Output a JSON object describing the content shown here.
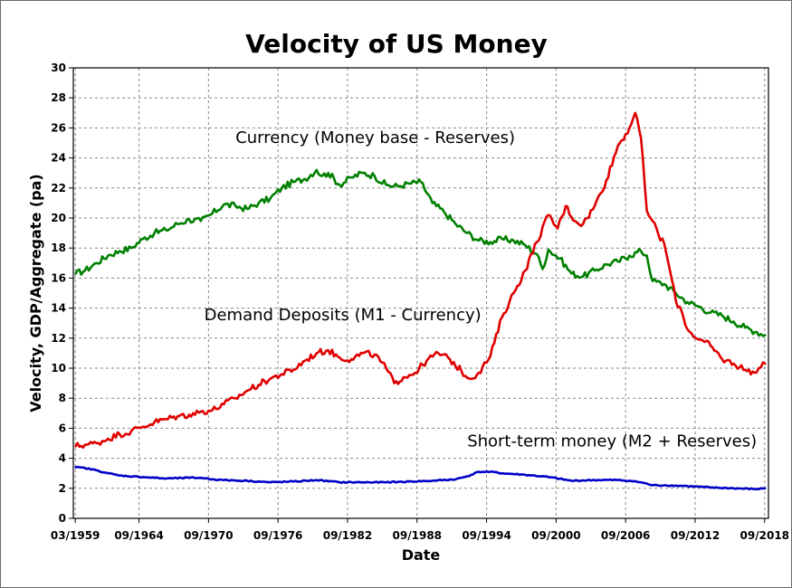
{
  "chart_data": {
    "type": "line",
    "title": "Velocity of US Money",
    "xlabel": "Date",
    "ylabel": "Velocity, GDP/Aggregate (pa)",
    "xlim": [
      1959.0,
      2019.0
    ],
    "ylim": [
      0,
      30
    ],
    "y_ticks": [
      0,
      2,
      4,
      6,
      8,
      10,
      12,
      14,
      16,
      18,
      20,
      22,
      24,
      26,
      28,
      30
    ],
    "x_ticks": [
      {
        "value": 1959.17,
        "label": "03/1959"
      },
      {
        "value": 1964.67,
        "label": "09/1964"
      },
      {
        "value": 1970.67,
        "label": "09/1970"
      },
      {
        "value": 1976.67,
        "label": "09/1976"
      },
      {
        "value": 1982.67,
        "label": "09/1982"
      },
      {
        "value": 1988.67,
        "label": "09/1988"
      },
      {
        "value": 1994.67,
        "label": "09/1994"
      },
      {
        "value": 2000.67,
        "label": "09/2000"
      },
      {
        "value": 2006.67,
        "label": "09/2006"
      },
      {
        "value": 2012.67,
        "label": "09/2012"
      },
      {
        "value": 2018.67,
        "label": "09/2018"
      }
    ],
    "grid": true,
    "legend": "none",
    "annotations": [
      {
        "text": "Currency (Money base - Reserves)",
        "x": 1973.0,
        "y": 25.0
      },
      {
        "text": "Demand Deposits (M1 - Currency)",
        "x": 1970.3,
        "y": 13.2
      },
      {
        "text": "Short-term money (M2 + Reserves)",
        "x": 1993.0,
        "y": 4.8
      }
    ],
    "series": [
      {
        "color": "#008000",
        "x": [
          1959.2,
          1960.0,
          1961.0,
          1962.0,
          1963.0,
          1964.0,
          1965.0,
          1966.0,
          1967.0,
          1968.0,
          1969.0,
          1970.0,
          1971.0,
          1972.0,
          1973.0,
          1974.0,
          1975.0,
          1976.0,
          1977.0,
          1978.0,
          1979.0,
          1980.0,
          1980.5,
          1981.0,
          1982.0,
          1983.0,
          1984.0,
          1985.0,
          1986.0,
          1987.0,
          1988.0,
          1989.0,
          1990.0,
          1991.0,
          1992.0,
          1993.0,
          1994.0,
          1995.0,
          1996.0,
          1997.0,
          1998.0,
          1999.0,
          1999.5,
          2000.0,
          2001.0,
          2002.0,
          2003.0,
          2004.0,
          2005.0,
          2006.0,
          2007.0,
          2008.0,
          2008.5,
          2009.0,
          2010.0,
          2011.0,
          2012.0,
          2013.0,
          2014.0,
          2015.0,
          2016.0,
          2017.0,
          2018.0,
          2018.7
        ],
        "y": [
          16.3,
          16.5,
          17.0,
          17.5,
          17.8,
          18.0,
          18.6,
          19.0,
          19.2,
          19.6,
          19.9,
          19.8,
          20.3,
          20.9,
          20.8,
          20.6,
          21.0,
          21.3,
          22.0,
          22.4,
          22.6,
          23.2,
          22.8,
          23.0,
          22.2,
          22.7,
          23.0,
          22.8,
          22.2,
          22.1,
          22.3,
          22.4,
          21.0,
          20.4,
          19.6,
          19.0,
          18.5,
          18.4,
          18.6,
          18.5,
          18.2,
          17.6,
          16.6,
          17.9,
          17.3,
          16.3,
          16.1,
          16.5,
          16.9,
          17.1,
          17.5,
          17.8,
          17.5,
          15.8,
          15.6,
          15.0,
          14.4,
          14.1,
          13.7,
          13.5,
          13.1,
          12.7,
          12.4,
          12.2
        ]
      },
      {
        "color": "#e00000",
        "x": [
          1959.2,
          1960.0,
          1961.0,
          1962.0,
          1963.0,
          1964.0,
          1965.0,
          1966.0,
          1967.0,
          1968.0,
          1969.0,
          1970.0,
          1971.0,
          1972.0,
          1973.0,
          1974.0,
          1975.0,
          1976.0,
          1977.0,
          1978.0,
          1979.0,
          1980.0,
          1981.0,
          1982.0,
          1983.0,
          1984.0,
          1985.0,
          1986.0,
          1986.7,
          1987.5,
          1988.5,
          1989.5,
          1990.5,
          1991.5,
          1992.5,
          1993.2,
          1994.0,
          1995.0,
          1996.0,
          1997.0,
          1998.0,
          1999.0,
          2000.0,
          2000.8,
          2001.5,
          2002.3,
          2003.0,
          2004.0,
          2005.0,
          2006.0,
          2007.0,
          2007.5,
          2008.0,
          2008.5,
          2009.0,
          2009.5,
          2010.0,
          2010.5,
          2011.0,
          2011.5,
          2012.0,
          2013.0,
          2014.0,
          2015.0,
          2016.0,
          2017.0,
          2017.8,
          2018.7
        ],
        "y": [
          4.8,
          4.9,
          5.0,
          5.3,
          5.6,
          5.8,
          6.1,
          6.4,
          6.6,
          6.8,
          6.9,
          7.1,
          7.2,
          7.6,
          8.0,
          8.5,
          8.9,
          9.3,
          9.6,
          9.9,
          10.5,
          11.0,
          11.2,
          10.7,
          10.6,
          11.0,
          10.9,
          10.0,
          9.0,
          9.4,
          9.7,
          10.5,
          11.0,
          10.6,
          9.8,
          9.3,
          9.7,
          10.8,
          13.4,
          15.0,
          16.5,
          18.4,
          20.2,
          19.3,
          20.8,
          19.8,
          19.6,
          20.8,
          22.5,
          24.8,
          26.0,
          27.0,
          25.3,
          20.5,
          19.8,
          18.9,
          18.3,
          16.5,
          14.5,
          13.8,
          12.6,
          11.9,
          11.5,
          10.6,
          10.3,
          9.9,
          9.7,
          10.3
        ]
      },
      {
        "color": "#0000c8",
        "x": [
          1959.2,
          1960.0,
          1961.0,
          1962.0,
          1963.0,
          1965.0,
          1967.0,
          1969.0,
          1970.0,
          1971.0,
          1972.0,
          1974.0,
          1976.0,
          1978.0,
          1980.0,
          1982.0,
          1984.0,
          1986.0,
          1988.0,
          1990.0,
          1992.0,
          1993.0,
          1994.0,
          1995.0,
          1996.0,
          1998.0,
          2000.0,
          2002.0,
          2004.0,
          2006.0,
          2007.0,
          2008.0,
          2009.0,
          2010.0,
          2012.0,
          2014.0,
          2016.0,
          2018.0,
          2018.7
        ],
        "y": [
          3.4,
          3.35,
          3.2,
          3.0,
          2.85,
          2.75,
          2.65,
          2.7,
          2.7,
          2.6,
          2.55,
          2.5,
          2.4,
          2.45,
          2.55,
          2.4,
          2.4,
          2.4,
          2.45,
          2.5,
          2.6,
          2.8,
          3.1,
          3.1,
          3.0,
          2.9,
          2.75,
          2.5,
          2.55,
          2.55,
          2.5,
          2.4,
          2.2,
          2.2,
          2.15,
          2.05,
          2.0,
          1.95,
          2.0
        ]
      }
    ]
  }
}
